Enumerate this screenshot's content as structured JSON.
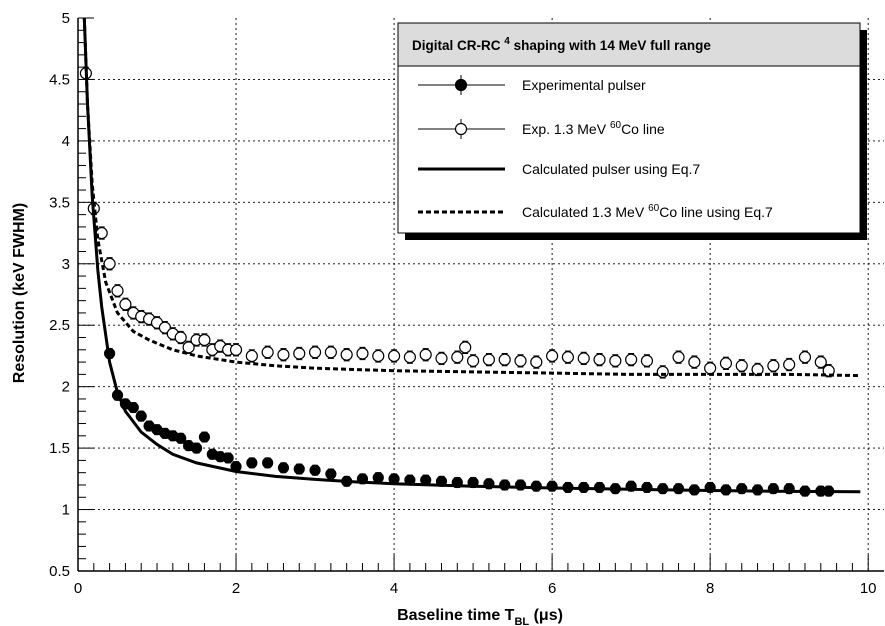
{
  "chart_data": {
    "type": "scatter",
    "title": "Digital CR-RC 4 shaping with 14 MeV full range",
    "title_parts": {
      "before": "Digital CR-RC ",
      "sup": "4",
      "after": " shaping with 14 MeV full range"
    },
    "xlabel": "Baseline time T_BL (μs)",
    "xlabel_parts": {
      "before": "Baseline time T",
      "sub": "BL",
      "after": " (μs)"
    },
    "ylabel": "Resolution (keV FWHM)",
    "xlim": [
      0,
      10.2
    ],
    "ylim": [
      0.5,
      5
    ],
    "x_ticks": [
      "0",
      "2",
      "4",
      "6",
      "8",
      "10"
    ],
    "y_ticks": [
      "0.5",
      "1",
      "1.5",
      "2",
      "2.5",
      "3",
      "3.5",
      "4",
      "4.5",
      "5"
    ],
    "grid": true,
    "legend_position": "top-right",
    "series": [
      {
        "name": "Experimental pulser",
        "name_parts": {
          "before": "Experimental pulser",
          "sup": "",
          "after": ""
        },
        "style": "filled-circle",
        "x": [
          0.4,
          0.5,
          0.6,
          0.7,
          0.8,
          0.9,
          1.0,
          1.1,
          1.2,
          1.3,
          1.4,
          1.5,
          1.6,
          1.7,
          1.8,
          1.9,
          2.0,
          2.2,
          2.4,
          2.6,
          2.8,
          3.0,
          3.2,
          3.4,
          3.6,
          3.8,
          4.0,
          4.2,
          4.4,
          4.6,
          4.8,
          5.0,
          5.2,
          5.4,
          5.6,
          5.8,
          6.0,
          6.2,
          6.4,
          6.6,
          6.8,
          7.0,
          7.2,
          7.4,
          7.6,
          7.8,
          8.0,
          8.2,
          8.4,
          8.6,
          8.8,
          9.0,
          9.2,
          9.4,
          9.5
        ],
        "y": [
          2.27,
          1.93,
          1.86,
          1.83,
          1.76,
          1.68,
          1.65,
          1.62,
          1.6,
          1.58,
          1.52,
          1.5,
          1.59,
          1.45,
          1.43,
          1.42,
          1.35,
          1.38,
          1.38,
          1.34,
          1.33,
          1.32,
          1.29,
          1.23,
          1.25,
          1.26,
          1.25,
          1.24,
          1.24,
          1.23,
          1.22,
          1.22,
          1.21,
          1.2,
          1.2,
          1.19,
          1.19,
          1.18,
          1.18,
          1.18,
          1.17,
          1.19,
          1.18,
          1.17,
          1.17,
          1.16,
          1.18,
          1.16,
          1.17,
          1.16,
          1.17,
          1.17,
          1.15,
          1.15,
          1.15
        ],
        "error": 0.04
      },
      {
        "name": "Exp. 1.3 MeV 60Co line",
        "name_parts": {
          "before": "Exp. 1.3 MeV ",
          "sup": "60",
          "after": "Co line"
        },
        "style": "open-circle",
        "x": [
          0.1,
          0.2,
          0.3,
          0.4,
          0.5,
          0.6,
          0.7,
          0.8,
          0.9,
          1.0,
          1.1,
          1.2,
          1.3,
          1.4,
          1.5,
          1.6,
          1.7,
          1.8,
          1.9,
          2.0,
          2.2,
          2.4,
          2.6,
          2.8,
          3.0,
          3.2,
          3.4,
          3.6,
          3.8,
          4.0,
          4.2,
          4.4,
          4.6,
          4.8,
          4.9,
          5.0,
          5.2,
          5.4,
          5.6,
          5.8,
          6.0,
          6.2,
          6.4,
          6.6,
          6.8,
          7.0,
          7.2,
          7.4,
          7.6,
          7.8,
          8.0,
          8.2,
          8.4,
          8.6,
          8.8,
          9.0,
          9.2,
          9.4,
          9.5
        ],
        "y": [
          4.55,
          3.45,
          3.25,
          3.0,
          2.78,
          2.67,
          2.6,
          2.57,
          2.55,
          2.52,
          2.48,
          2.43,
          2.4,
          2.32,
          2.38,
          2.38,
          2.3,
          2.33,
          2.3,
          2.3,
          2.25,
          2.28,
          2.26,
          2.27,
          2.28,
          2.28,
          2.26,
          2.27,
          2.25,
          2.25,
          2.24,
          2.26,
          2.23,
          2.24,
          2.32,
          2.21,
          2.22,
          2.22,
          2.21,
          2.2,
          2.25,
          2.24,
          2.23,
          2.22,
          2.21,
          2.22,
          2.21,
          2.12,
          2.24,
          2.2,
          2.15,
          2.19,
          2.17,
          2.14,
          2.17,
          2.18,
          2.24,
          2.2,
          2.13
        ],
        "error": 0.05
      },
      {
        "name": "Calculated pulser using Eq.7",
        "name_parts": {
          "before": "Calculated pulser using Eq.7",
          "sup": "",
          "after": ""
        },
        "style": "solid-line",
        "x": [
          0.08,
          0.12,
          0.18,
          0.25,
          0.3,
          0.4,
          0.5,
          0.6,
          0.8,
          1.0,
          1.2,
          1.5,
          2.0,
          2.5,
          3.0,
          3.5,
          4.0,
          5.0,
          6.0,
          7.0,
          8.0,
          9.0,
          9.9
        ],
        "y": [
          5.0,
          4.3,
          3.55,
          2.95,
          2.65,
          2.2,
          1.95,
          1.8,
          1.63,
          1.53,
          1.45,
          1.38,
          1.31,
          1.27,
          1.245,
          1.225,
          1.21,
          1.19,
          1.175,
          1.165,
          1.155,
          1.148,
          1.145
        ]
      },
      {
        "name": "Calculated 1.3 MeV 60Co line using Eq.7",
        "name_parts": {
          "before": "Calculated 1.3 MeV ",
          "sup": "60",
          "after": "Co line using Eq.7"
        },
        "style": "dashed-line",
        "x": [
          0.08,
          0.12,
          0.18,
          0.25,
          0.35,
          0.5,
          0.7,
          0.9,
          1.2,
          1.5,
          2.0,
          2.5,
          3.0,
          3.5,
          4.0,
          5.0,
          6.0,
          7.0,
          8.0,
          9.0,
          9.9
        ],
        "y": [
          5.0,
          4.3,
          3.65,
          3.2,
          2.85,
          2.6,
          2.45,
          2.38,
          2.3,
          2.25,
          2.2,
          2.17,
          2.15,
          2.14,
          2.13,
          2.12,
          2.11,
          2.1,
          2.1,
          2.1,
          2.09
        ]
      }
    ]
  }
}
